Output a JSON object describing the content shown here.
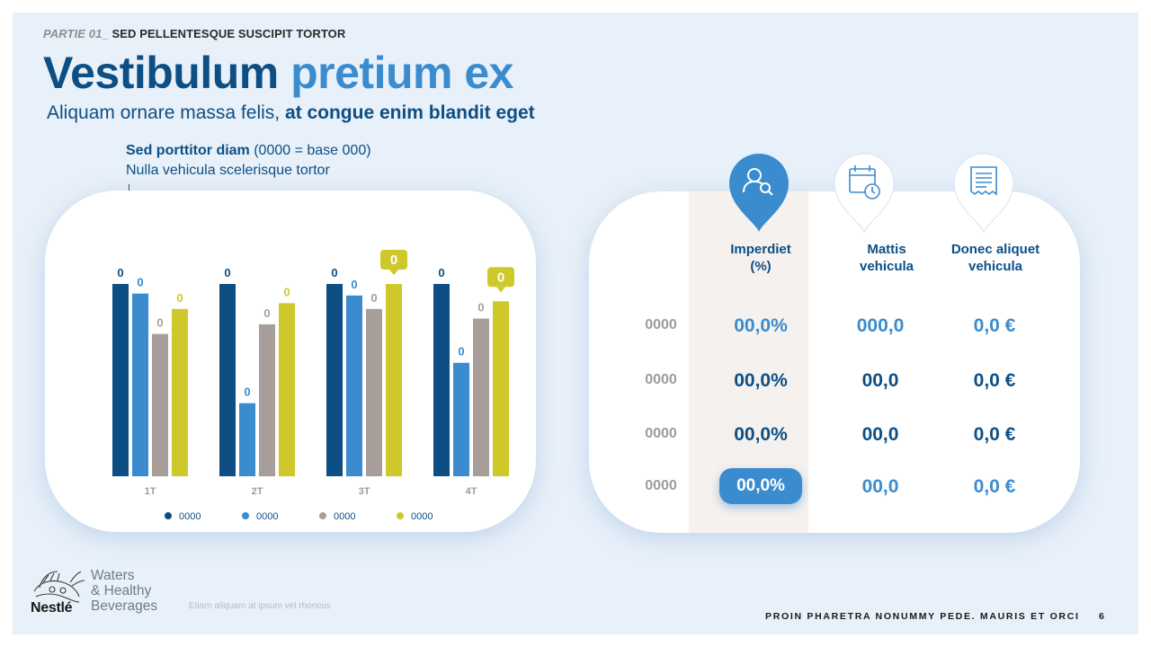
{
  "header": {
    "kicker_part": "PARTIE 01_",
    "kicker_text": " SED PELLENTESQUE SUSCIPIT TORTOR",
    "title_dark": "Vestibulum ",
    "title_light": "pretium ex",
    "subtitle_regular": "Aliquam ornare massa felis, ",
    "subtitle_bold": "at congue enim blandit eget"
  },
  "chart_note": {
    "bold": "Sed porttitor diam",
    "regular": " (0000 = base 000)",
    "line2": "Nulla vehicula scelerisque tortor"
  },
  "chart_data": {
    "type": "bar",
    "categories": [
      "1T",
      "2T",
      "3T",
      "4T"
    ],
    "series": [
      {
        "name": "0000",
        "color": "#0d4f85",
        "values": [
          100,
          100,
          100,
          100
        ],
        "labels": [
          "0",
          "0",
          "0",
          "0"
        ]
      },
      {
        "name": "0000",
        "color": "#3a8ccf",
        "values": [
          95,
          38,
          94,
          59
        ],
        "labels": [
          "0",
          "0",
          "0",
          "0"
        ]
      },
      {
        "name": "0000",
        "color": "#a89e99",
        "values": [
          74,
          79,
          87,
          82
        ],
        "labels": [
          "0",
          "0",
          "0",
          "0"
        ]
      },
      {
        "name": "0000",
        "color": "#cfc82a",
        "values": [
          87,
          90,
          100,
          91
        ],
        "labels": [
          "0",
          "0",
          "0",
          "0"
        ]
      }
    ],
    "highlighted_labels": [
      {
        "category": "3T",
        "series": 3,
        "text": "0"
      },
      {
        "category": "4T",
        "series": 3,
        "text": "0"
      }
    ],
    "legend_position": "bottom",
    "grid": false
  },
  "table": {
    "columns": [
      {
        "label_1": "Imperdiet",
        "label_2": "(%)",
        "icon": "people-search-icon"
      },
      {
        "label_1": "Mattis",
        "label_2": "vehicula",
        "icon": "calendar-clock-icon"
      },
      {
        "label_1": "Donec aliquet",
        "label_2": "vehicula",
        "icon": "receipt-icon"
      }
    ],
    "rows": [
      {
        "label": "0000",
        "cells": [
          "00,0%",
          "000,0",
          "0,0 €"
        ]
      },
      {
        "label": "0000",
        "cells": [
          "00,0%",
          "00,0",
          "0,0 €"
        ]
      },
      {
        "label": "0000",
        "cells": [
          "00,0%",
          "00,0",
          "0,0 €"
        ]
      },
      {
        "label": "0000",
        "cells": [
          "00,0%",
          "00,0",
          "0,0 €"
        ]
      }
    ],
    "colors": {
      "dark": "#0d4f85",
      "light": "#3a8ccf",
      "band": "#f5f1ee"
    }
  },
  "brand": {
    "name": "Nestlé",
    "line1": "Waters",
    "line2": "& Healthy",
    "line3": "Beverages"
  },
  "footer": {
    "note": "Etiam aliquam at ipsum vel rhoncus",
    "text": "PROIN PHARETRA NONUMMY PEDE. MAURIS ET ORCI",
    "page": "6"
  }
}
